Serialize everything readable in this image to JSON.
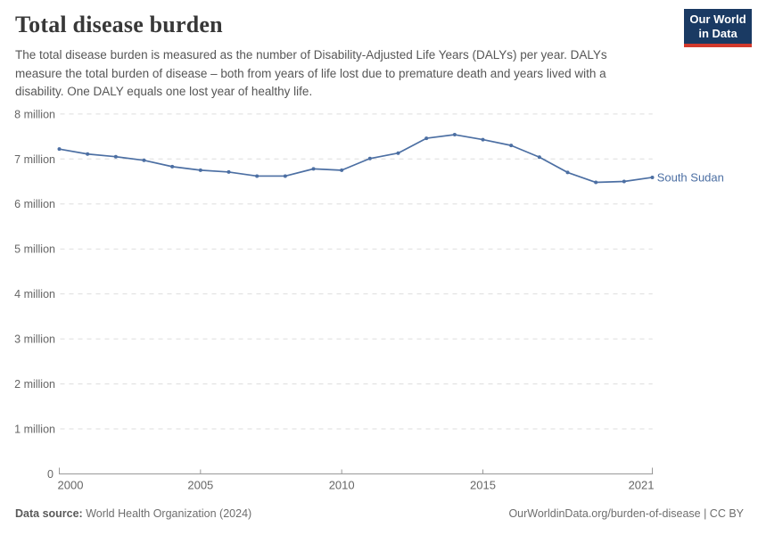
{
  "header": {
    "title": "Total disease burden",
    "subtitle": "The total disease burden is measured as the number of Disability-Adjusted Life Years (DALYs) per year. DALYs measure the total burden of disease – both from years of life lost due to premature death and years lived with a disability. One DALY equals one lost year of healthy life.",
    "logo": {
      "line1": "Our World",
      "line2": "in Data"
    }
  },
  "footer": {
    "data_source_label": "Data source:",
    "data_source_value": "World Health Organization (2024)",
    "credit_url": "OurWorldinData.org/burden-of-disease",
    "credit_separator": " | ",
    "credit_license": "CC BY"
  },
  "colors": {
    "series_blue": "#4C6FA3",
    "logo_navy": "#1A3A63",
    "logo_red": "#D2392C",
    "gridline": "#DDDDDD",
    "axis": "#999999",
    "tick_text": "#666666"
  },
  "chart_data": {
    "type": "line",
    "title": "Total disease burden",
    "ylabel": "",
    "xlabel": "",
    "values_unit": "million DALYs per year",
    "x": [
      2000,
      2001,
      2002,
      2003,
      2004,
      2005,
      2006,
      2007,
      2008,
      2009,
      2010,
      2011,
      2012,
      2013,
      2014,
      2015,
      2016,
      2017,
      2018,
      2019,
      2020,
      2021
    ],
    "series": [
      {
        "name": "South Sudan",
        "color": "#4C6FA3",
        "values": [
          7.22,
          7.11,
          7.05,
          6.97,
          6.83,
          6.75,
          6.71,
          6.62,
          6.62,
          6.78,
          6.75,
          7.01,
          7.13,
          7.46,
          7.54,
          7.43,
          7.3,
          7.04,
          6.7,
          6.48,
          6.5,
          6.59
        ]
      }
    ],
    "ylim": [
      0,
      8
    ],
    "ytick_labels": [
      "0",
      "1 million",
      "2 million",
      "3 million",
      "4 million",
      "5 million",
      "6 million",
      "7 million",
      "8 million"
    ],
    "xticks": [
      2000,
      2005,
      2010,
      2015,
      2021
    ],
    "grid": "horizontal dashed",
    "legend": "entity label at end of line",
    "markers": "point per year"
  }
}
